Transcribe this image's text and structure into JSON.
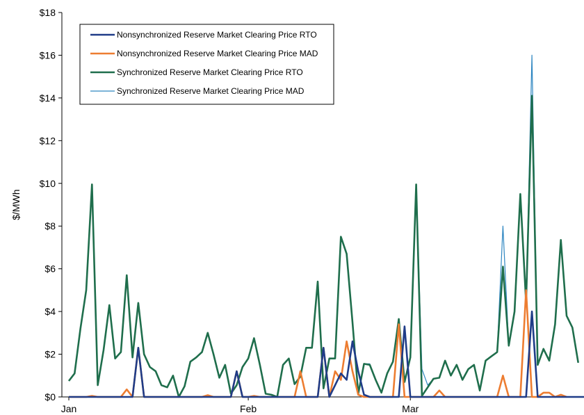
{
  "chart_data": {
    "type": "line",
    "title": "",
    "xlabel": "",
    "ylabel": "$/MWh",
    "ylim": [
      0,
      18
    ],
    "grid": false,
    "legend_position": "top-left",
    "y_ticks": [
      "$0",
      "$2",
      "$4",
      "$6",
      "$8",
      "$10",
      "$12",
      "$14",
      "$16",
      "$18"
    ],
    "x_tick_labels": [
      {
        "label": "Jan",
        "day": 1
      },
      {
        "label": "Feb",
        "day": 32
      },
      {
        "label": "Mar",
        "day": 60
      }
    ],
    "x_range_days": [
      1,
      90
    ],
    "series": [
      {
        "name": "Nonsynchronized Reserve Market Clearing Price RTO",
        "color": "#1f3c88",
        "style": "thick",
        "points": [
          [
            1,
            0
          ],
          [
            12,
            0
          ],
          [
            13,
            2.3
          ],
          [
            14,
            0
          ],
          [
            29,
            0
          ],
          [
            30,
            1.2
          ],
          [
            31,
            0
          ],
          [
            44,
            0
          ],
          [
            45,
            2.3
          ],
          [
            46,
            0
          ],
          [
            48,
            1.1
          ],
          [
            49,
            0.8
          ],
          [
            50,
            2.6
          ],
          [
            51,
            1.2
          ],
          [
            52,
            0.1
          ],
          [
            53,
            0
          ],
          [
            58,
            0
          ],
          [
            59,
            3.3
          ],
          [
            60,
            0
          ],
          [
            80,
            0
          ],
          [
            81,
            4.0
          ],
          [
            82,
            0
          ],
          [
            90,
            0
          ]
        ]
      },
      {
        "name": "Nonsynchronized Reserve Market Clearing Price MAD",
        "color": "#ed7d31",
        "style": "thick",
        "points": [
          [
            1,
            0
          ],
          [
            4,
            0
          ],
          [
            5,
            0.05
          ],
          [
            6,
            0
          ],
          [
            10,
            0
          ],
          [
            11,
            0.35
          ],
          [
            12,
            0
          ],
          [
            13,
            2.3
          ],
          [
            14,
            0
          ],
          [
            24,
            0
          ],
          [
            25,
            0.08
          ],
          [
            26,
            0
          ],
          [
            29,
            0
          ],
          [
            30,
            1.2
          ],
          [
            31,
            0
          ],
          [
            32,
            0
          ],
          [
            33,
            0.05
          ],
          [
            34,
            0
          ],
          [
            40,
            0
          ],
          [
            41,
            1.2
          ],
          [
            42,
            0
          ],
          [
            44,
            0
          ],
          [
            45,
            2.3
          ],
          [
            46,
            0
          ],
          [
            47,
            1.2
          ],
          [
            48,
            0.8
          ],
          [
            49,
            2.6
          ],
          [
            50,
            1.2
          ],
          [
            51,
            0.1
          ],
          [
            52,
            0
          ],
          [
            57,
            0
          ],
          [
            58,
            3.4
          ],
          [
            59,
            0
          ],
          [
            64,
            0
          ],
          [
            65,
            0.3
          ],
          [
            66,
            0
          ],
          [
            75,
            0
          ],
          [
            76,
            1.0
          ],
          [
            77,
            0
          ],
          [
            79,
            0
          ],
          [
            80,
            5.0
          ],
          [
            81,
            0
          ],
          [
            82,
            0
          ],
          [
            83,
            0.2
          ],
          [
            84,
            0.2
          ],
          [
            85,
            0
          ],
          [
            86,
            0.1
          ],
          [
            87,
            0
          ]
        ]
      },
      {
        "name": "Synchronized Reserve Market Clearing Price RTO",
        "color": "#1f6e4c",
        "style": "thick",
        "points": [
          [
            1,
            0.75
          ],
          [
            2,
            1.1
          ],
          [
            3,
            3.2
          ],
          [
            4,
            5.0
          ],
          [
            5,
            9.95
          ],
          [
            6,
            0.55
          ],
          [
            7,
            2.2
          ],
          [
            8,
            4.3
          ],
          [
            9,
            1.8
          ],
          [
            10,
            2.1
          ],
          [
            11,
            5.7
          ],
          [
            12,
            1.85
          ],
          [
            13,
            4.4
          ],
          [
            14,
            2.0
          ],
          [
            15,
            1.4
          ],
          [
            16,
            1.2
          ],
          [
            17,
            0.55
          ],
          [
            18,
            0.45
          ],
          [
            19,
            1.0
          ],
          [
            20,
            0.0
          ],
          [
            21,
            0.5
          ],
          [
            22,
            1.65
          ],
          [
            23,
            1.85
          ],
          [
            24,
            2.1
          ],
          [
            25,
            3.0
          ],
          [
            26,
            2.0
          ],
          [
            27,
            0.9
          ],
          [
            28,
            1.5
          ],
          [
            29,
            0.15
          ],
          [
            30,
            0.55
          ],
          [
            31,
            1.4
          ],
          [
            32,
            1.8
          ],
          [
            33,
            2.75
          ],
          [
            34,
            1.5
          ],
          [
            35,
            0.15
          ],
          [
            36,
            0.1
          ],
          [
            37,
            0.0
          ],
          [
            38,
            1.5
          ],
          [
            39,
            1.8
          ],
          [
            40,
            0.6
          ],
          [
            41,
            0.95
          ],
          [
            42,
            2.3
          ],
          [
            43,
            2.3
          ],
          [
            44,
            5.4
          ],
          [
            45,
            0.4
          ],
          [
            46,
            1.8
          ],
          [
            47,
            1.8
          ],
          [
            48,
            7.5
          ],
          [
            49,
            6.7
          ],
          [
            50,
            3.5
          ],
          [
            51,
            0.15
          ],
          [
            52,
            1.55
          ],
          [
            53,
            1.5
          ],
          [
            54,
            0.8
          ],
          [
            55,
            0.2
          ],
          [
            56,
            1.1
          ],
          [
            57,
            1.65
          ],
          [
            58,
            3.65
          ],
          [
            59,
            0.7
          ],
          [
            60,
            1.85
          ],
          [
            61,
            9.95
          ],
          [
            62,
            0.05
          ],
          [
            63,
            0.45
          ],
          [
            64,
            0.85
          ],
          [
            65,
            0.9
          ],
          [
            66,
            1.7
          ],
          [
            67,
            1.0
          ],
          [
            68,
            1.5
          ],
          [
            69,
            0.8
          ],
          [
            70,
            1.3
          ],
          [
            71,
            1.5
          ],
          [
            72,
            0.3
          ],
          [
            73,
            1.7
          ],
          [
            74,
            1.9
          ],
          [
            75,
            2.1
          ],
          [
            76,
            6.1
          ],
          [
            77,
            2.4
          ],
          [
            78,
            4.0
          ],
          [
            79,
            9.5
          ],
          [
            80,
            4.4
          ],
          [
            81,
            14.1
          ],
          [
            82,
            1.5
          ],
          [
            83,
            2.25
          ],
          [
            84,
            1.7
          ],
          [
            85,
            3.4
          ],
          [
            86,
            7.35
          ],
          [
            87,
            3.8
          ],
          [
            88,
            3.25
          ],
          [
            89,
            1.6
          ]
        ]
      },
      {
        "name": "Synchronized Reserve Market Clearing Price MAD",
        "color": "#2e86c1",
        "style": "thin",
        "points": [
          [
            1,
            0.75
          ],
          [
            2,
            1.1
          ],
          [
            3,
            3.2
          ],
          [
            4,
            5.0
          ],
          [
            5,
            9.95
          ],
          [
            6,
            0.55
          ],
          [
            7,
            2.2
          ],
          [
            8,
            4.3
          ],
          [
            9,
            1.8
          ],
          [
            10,
            2.1
          ],
          [
            11,
            5.7
          ],
          [
            12,
            1.85
          ],
          [
            13,
            4.4
          ],
          [
            14,
            2.0
          ],
          [
            15,
            1.4
          ],
          [
            16,
            1.2
          ],
          [
            17,
            0.55
          ],
          [
            18,
            0.45
          ],
          [
            19,
            1.0
          ],
          [
            20,
            0.0
          ],
          [
            21,
            0.5
          ],
          [
            22,
            1.65
          ],
          [
            23,
            1.85
          ],
          [
            24,
            2.1
          ],
          [
            25,
            3.0
          ],
          [
            26,
            2.0
          ],
          [
            27,
            0.9
          ],
          [
            28,
            1.5
          ],
          [
            29,
            0.15
          ],
          [
            30,
            0.55
          ],
          [
            31,
            1.4
          ],
          [
            32,
            1.8
          ],
          [
            33,
            2.75
          ],
          [
            34,
            1.5
          ],
          [
            35,
            0.15
          ],
          [
            36,
            0.1
          ],
          [
            37,
            0.0
          ],
          [
            38,
            1.5
          ],
          [
            39,
            1.8
          ],
          [
            40,
            0.6
          ],
          [
            41,
            0.95
          ],
          [
            42,
            2.3
          ],
          [
            43,
            2.3
          ],
          [
            44,
            5.4
          ],
          [
            45,
            0.4
          ],
          [
            46,
            1.8
          ],
          [
            47,
            1.8
          ],
          [
            48,
            7.5
          ],
          [
            49,
            6.7
          ],
          [
            50,
            3.5
          ],
          [
            51,
            0.15
          ],
          [
            52,
            1.55
          ],
          [
            53,
            1.55
          ],
          [
            54,
            0.8
          ],
          [
            55,
            0.2
          ],
          [
            56,
            1.1
          ],
          [
            57,
            1.65
          ],
          [
            58,
            3.65
          ],
          [
            59,
            0.7
          ],
          [
            60,
            1.85
          ],
          [
            61,
            9.95
          ],
          [
            62,
            1.3
          ],
          [
            63,
            0.55
          ],
          [
            64,
            0.85
          ],
          [
            65,
            0.9
          ],
          [
            66,
            1.7
          ],
          [
            67,
            1.0
          ],
          [
            68,
            1.5
          ],
          [
            69,
            0.8
          ],
          [
            70,
            1.3
          ],
          [
            71,
            1.5
          ],
          [
            72,
            0.3
          ],
          [
            73,
            1.7
          ],
          [
            74,
            1.9
          ],
          [
            75,
            2.1
          ],
          [
            76,
            8.0
          ],
          [
            77,
            2.4
          ],
          [
            78,
            4.0
          ],
          [
            79,
            9.5
          ],
          [
            80,
            4.4
          ],
          [
            81,
            16.0
          ],
          [
            82,
            1.5
          ],
          [
            83,
            2.25
          ],
          [
            84,
            1.7
          ],
          [
            85,
            3.4
          ],
          [
            86,
            7.35
          ],
          [
            87,
            3.8
          ],
          [
            88,
            3.25
          ],
          [
            89,
            1.6
          ]
        ]
      }
    ]
  }
}
